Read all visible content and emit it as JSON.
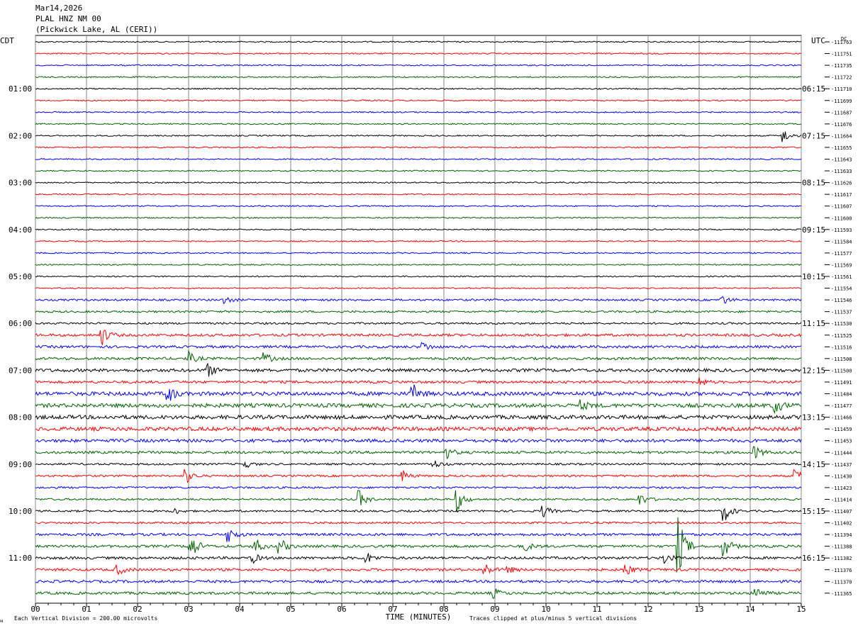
{
  "header": {
    "date": "Mar14,2026",
    "station": "PLAL HNZ NM 00",
    "location": "(Pickwick Lake, AL (CERI))"
  },
  "left_axis_label": "CDT",
  "right_axis_label": "UTC",
  "dc_label": "DC",
  "footer": {
    "scale_note": "Each Vertical Division =  200.00 microvolts",
    "clip_note": "Traces clipped at plus/minus 5 vertical divisions",
    "corner_mark": "ᴍ"
  },
  "chart_data": {
    "type": "line",
    "xlabel": "TIME (MINUTES)",
    "xlim": [
      0,
      15
    ],
    "x_ticks": [
      "00",
      "01",
      "02",
      "03",
      "04",
      "05",
      "06",
      "07",
      "08",
      "09",
      "10",
      "11",
      "12",
      "13",
      "14",
      "15"
    ],
    "trace_colors": [
      "#000000",
      "#ff0000",
      "#0000ff",
      "#006400"
    ],
    "left_time_labels": [
      "01:00",
      "02:00",
      "03:00",
      "04:00",
      "05:00",
      "06:00",
      "07:00",
      "08:00",
      "09:00",
      "10:00",
      "11:00"
    ],
    "right_time_labels": [
      "06:15",
      "07:15",
      "08:15",
      "09:15",
      "10:15",
      "11:15",
      "12:15",
      "13:15",
      "14:15",
      "15:15",
      "16:15"
    ],
    "dc_offsets": [
      "-111763",
      "-111751",
      "-111735",
      "-111722",
      "-111710",
      "-111699",
      "-111687",
      "-111676",
      "-111664",
      "-111655",
      "-111643",
      "-111633",
      "-111626",
      "-111617",
      "-111607",
      "-111600",
      "-111593",
      "-111584",
      "-111577",
      "-111569",
      "-111561",
      "-111554",
      "-111546",
      "-111537",
      "-111530",
      "-111525",
      "-111516",
      "-111508",
      "-111500",
      "-111491",
      "-111484",
      "-111477",
      "-111466",
      "-111459",
      "-111453",
      "-111444",
      "-111437",
      "-111430",
      "-111423",
      "-111414",
      "-111407",
      "-111402",
      "-111394",
      "-111388",
      "-111382",
      "-111376",
      "-111370",
      "-111365"
    ],
    "noise_levels": [
      1,
      1,
      1,
      1,
      1,
      1,
      1,
      1,
      1,
      1,
      1,
      1,
      1,
      1,
      1,
      1,
      1,
      1,
      1,
      1,
      1,
      1,
      1.5,
      1.5,
      1.5,
      2,
      2,
      2,
      2.5,
      2,
      3,
      3,
      3,
      3,
      2.5,
      2,
      1.5,
      1.5,
      1.5,
      1.5,
      1.5,
      1.5,
      2,
      2,
      2,
      2,
      2,
      2
    ],
    "events": [
      {
        "trace": 8,
        "minute": 14.65,
        "amp": 10
      },
      {
        "trace": 22,
        "minute": 3.7,
        "amp": 6
      },
      {
        "trace": 22,
        "minute": 13.45,
        "amp": 7
      },
      {
        "trace": 25,
        "minute": 1.3,
        "amp": 14
      },
      {
        "trace": 26,
        "minute": 7.6,
        "amp": 6
      },
      {
        "trace": 27,
        "minute": 3.0,
        "amp": 9
      },
      {
        "trace": 27,
        "minute": 4.5,
        "amp": 7
      },
      {
        "trace": 28,
        "minute": 3.4,
        "amp": 8
      },
      {
        "trace": 29,
        "minute": 13.0,
        "amp": 7
      },
      {
        "trace": 30,
        "minute": 2.6,
        "amp": 12
      },
      {
        "trace": 30,
        "minute": 7.4,
        "amp": 12
      },
      {
        "trace": 31,
        "minute": 14.5,
        "amp": 10
      },
      {
        "trace": 31,
        "minute": 10.7,
        "amp": 6
      },
      {
        "trace": 35,
        "minute": 8.05,
        "amp": 8
      },
      {
        "trace": 35,
        "minute": 14.1,
        "amp": 9
      },
      {
        "trace": 36,
        "minute": 7.8,
        "amp": 6
      },
      {
        "trace": 36,
        "minute": 4.1,
        "amp": 6
      },
      {
        "trace": 37,
        "minute": 2.95,
        "amp": 11
      },
      {
        "trace": 37,
        "minute": 7.2,
        "amp": 7
      },
      {
        "trace": 37,
        "minute": 14.9,
        "amp": 8
      },
      {
        "trace": 39,
        "minute": 6.35,
        "amp": 12
      },
      {
        "trace": 39,
        "minute": 8.25,
        "amp": 18
      },
      {
        "trace": 39,
        "minute": 11.85,
        "amp": 8
      },
      {
        "trace": 40,
        "minute": 9.95,
        "amp": 8
      },
      {
        "trace": 40,
        "minute": 13.5,
        "amp": 14
      },
      {
        "trace": 40,
        "minute": 2.7,
        "amp": 5
      },
      {
        "trace": 42,
        "minute": 3.8,
        "amp": 10
      },
      {
        "trace": 43,
        "minute": 3.05,
        "amp": 18
      },
      {
        "trace": 43,
        "minute": 4.3,
        "amp": 12
      },
      {
        "trace": 43,
        "minute": 4.8,
        "amp": 10
      },
      {
        "trace": 43,
        "minute": 12.6,
        "amp": 40
      },
      {
        "trace": 43,
        "minute": 13.5,
        "amp": 14
      },
      {
        "trace": 43,
        "minute": 9.6,
        "amp": 6
      },
      {
        "trace": 44,
        "minute": 12.3,
        "amp": 9
      },
      {
        "trace": 44,
        "minute": 6.5,
        "amp": 7
      },
      {
        "trace": 44,
        "minute": 4.25,
        "amp": 7
      },
      {
        "trace": 45,
        "minute": 1.6,
        "amp": 8
      },
      {
        "trace": 45,
        "minute": 8.8,
        "amp": 9
      },
      {
        "trace": 45,
        "minute": 11.55,
        "amp": 10
      },
      {
        "trace": 45,
        "minute": 9.2,
        "amp": 7
      },
      {
        "trace": 47,
        "minute": 14.1,
        "amp": 10
      },
      {
        "trace": 47,
        "minute": 9.0,
        "amp": 6
      }
    ]
  }
}
